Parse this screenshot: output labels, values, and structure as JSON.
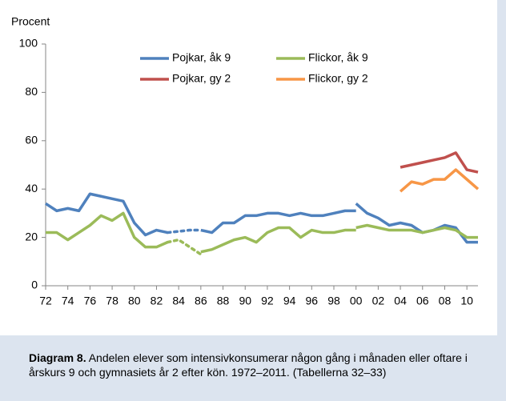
{
  "chart_data": {
    "type": "line",
    "y_label": "Procent",
    "xlim": [
      1972,
      2011
    ],
    "ylim": [
      0,
      100
    ],
    "yticks": [
      0,
      20,
      40,
      60,
      80,
      100
    ],
    "xticks": [
      {
        "value": 1972,
        "label": "72"
      },
      {
        "value": 1974,
        "label": "74"
      },
      {
        "value": 1976,
        "label": "76"
      },
      {
        "value": 1978,
        "label": "78"
      },
      {
        "value": 1980,
        "label": "80"
      },
      {
        "value": 1982,
        "label": "82"
      },
      {
        "value": 1984,
        "label": "84"
      },
      {
        "value": 1986,
        "label": "86"
      },
      {
        "value": 1988,
        "label": "88"
      },
      {
        "value": 1990,
        "label": "90"
      },
      {
        "value": 1992,
        "label": "92"
      },
      {
        "value": 1994,
        "label": "94"
      },
      {
        "value": 1996,
        "label": "96"
      },
      {
        "value": 1998,
        "label": "98"
      },
      {
        "value": 2000,
        "label": "00"
      },
      {
        "value": 2002,
        "label": "02"
      },
      {
        "value": 2004,
        "label": "04"
      },
      {
        "value": 2006,
        "label": "06"
      },
      {
        "value": 2008,
        "label": "08"
      },
      {
        "value": 2010,
        "label": "10"
      }
    ],
    "series": [
      {
        "name": "Pojkar, åk 9",
        "color": "#4f81bd",
        "segments": [
          {
            "style": "solid",
            "x": [
              1972,
              1973,
              1974,
              1975,
              1976,
              1977,
              1978,
              1979,
              1980,
              1981,
              1982,
              1983
            ],
            "values": [
              34,
              31,
              32,
              31,
              38,
              37,
              36,
              35,
              26,
              21,
              23,
              22
            ]
          },
          {
            "style": "dotted",
            "x": [
              1983,
              1984,
              1985,
              1986
            ],
            "values": [
              22,
              22.5,
              23,
              23
            ]
          },
          {
            "style": "solid",
            "x": [
              1986,
              1987,
              1988,
              1989,
              1990,
              1991,
              1992,
              1993,
              1994,
              1995,
              1996,
              1997,
              1998,
              1999,
              2000
            ],
            "values": [
              23,
              22,
              26,
              26,
              29,
              29,
              30,
              30,
              29,
              30,
              29,
              29,
              30,
              31,
              31
            ]
          },
          {
            "style": "solid",
            "x": [
              2000,
              2001,
              2002,
              2003,
              2004,
              2005,
              2006,
              2007,
              2008,
              2009,
              2010,
              2011
            ],
            "values": [
              34,
              30,
              28,
              25,
              26,
              25,
              22,
              23,
              25,
              24,
              18,
              18
            ]
          }
        ]
      },
      {
        "name": "Flickor, åk 9",
        "color": "#9bbb59",
        "segments": [
          {
            "style": "solid",
            "x": [
              1972,
              1973,
              1974,
              1975,
              1976,
              1977,
              1978,
              1979,
              1980,
              1981,
              1982,
              1983
            ],
            "values": [
              22,
              22,
              19,
              22,
              25,
              29,
              27,
              30,
              20,
              16,
              16,
              18
            ]
          },
          {
            "style": "dotted",
            "x": [
              1983,
              1984,
              1985,
              1986
            ],
            "values": [
              18,
              19,
              16,
              13
            ]
          },
          {
            "style": "solid",
            "x": [
              1986,
              1987,
              1988,
              1989,
              1990,
              1991,
              1992,
              1993,
              1994,
              1995,
              1996,
              1997,
              1998,
              1999,
              2000
            ],
            "values": [
              14,
              15,
              17,
              19,
              20,
              18,
              22,
              24,
              24,
              20,
              23,
              22,
              22,
              23,
              23
            ]
          },
          {
            "style": "solid",
            "x": [
              2000,
              2001,
              2002,
              2003,
              2004,
              2005,
              2006,
              2007,
              2008,
              2009,
              2010,
              2011
            ],
            "values": [
              24,
              25,
              24,
              23,
              23,
              23,
              22,
              23,
              24,
              23,
              20,
              20
            ]
          }
        ]
      },
      {
        "name": "Pojkar, gy 2",
        "color": "#c0504d",
        "segments": [
          {
            "style": "solid",
            "x": [
              2004,
              2005,
              2006,
              2007,
              2008,
              2009,
              2010,
              2011
            ],
            "values": [
              49,
              50,
              51,
              52,
              53,
              55,
              48,
              47
            ]
          }
        ]
      },
      {
        "name": "Flickor, gy 2",
        "color": "#f79646",
        "segments": [
          {
            "style": "solid",
            "x": [
              2004,
              2005,
              2006,
              2007,
              2008,
              2009,
              2010,
              2011
            ],
            "values": [
              39,
              43,
              42,
              44,
              44,
              48,
              44,
              40
            ]
          }
        ]
      }
    ],
    "caption_label": "Diagram 8.",
    "caption": "Andelen elever som intensivkonsumerar någon gång i månaden eller oftare i årskurs 9 och gymnasiets år 2 efter kön. 1972–2011. (Tabellerna 32–33)"
  }
}
